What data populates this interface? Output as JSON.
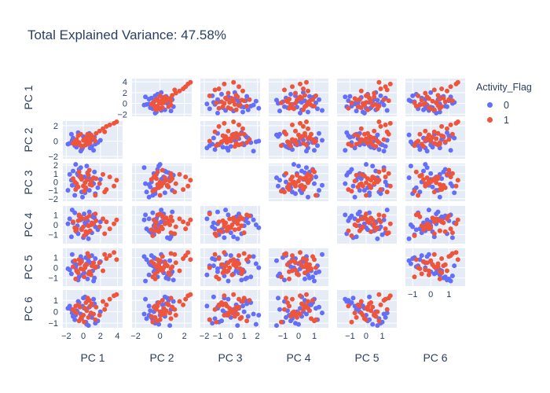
{
  "chart_data": {
    "type": "scatter",
    "title": "Total Explained Variance: 47.58%",
    "dimensions": [
      "PC 1",
      "PC 2",
      "PC 3",
      "PC 4",
      "PC 5",
      "PC 6"
    ],
    "diagonal_visible": false,
    "grid": true,
    "axis_ranges": [
      [
        -2.4,
        4.6
      ],
      [
        -2.3,
        2.6
      ],
      [
        -2.3,
        2.2
      ],
      [
        -1.9,
        1.9
      ],
      [
        -1.8,
        1.9
      ],
      [
        -1.4,
        1.9
      ]
    ],
    "axis_ticks_y": [
      [
        -2,
        0,
        2,
        4
      ],
      [
        -2,
        0,
        2
      ],
      [
        -2,
        -1,
        0,
        1,
        2
      ],
      [
        -1,
        0,
        1
      ],
      [
        -1,
        0,
        1
      ],
      [
        -1,
        0,
        1
      ]
    ],
    "axis_ticks_x": [
      [
        -2,
        0,
        2,
        4
      ],
      [
        -2,
        0,
        2
      ],
      [
        -2,
        -1,
        0,
        1,
        2
      ],
      [
        -1,
        0,
        1
      ],
      [
        -1,
        0,
        1
      ],
      [
        -1,
        0,
        1
      ]
    ],
    "legend": {
      "title": "Activity_Flag",
      "placement": "top-right",
      "items": [
        {
          "label": "0",
          "color": "#636efa"
        },
        {
          "label": "1",
          "color": "#ef553b"
        }
      ]
    },
    "series": [
      {
        "name": "0",
        "color": "#636efa",
        "points": [
          [
            -1.6,
            -0.3,
            0.9,
            0.6,
            -0.2,
            0.5
          ],
          [
            -1.2,
            0.4,
            1.3,
            0.2,
            0.6,
            -0.4
          ],
          [
            -0.8,
            -0.8,
            -0.6,
            -0.7,
            0.3,
            0.1
          ],
          [
            -0.5,
            -0.2,
            1.5,
            0.9,
            -0.9,
            0.8
          ],
          [
            -0.2,
            -1.1,
            -1.2,
            -0.4,
            0.8,
            -0.6
          ],
          [
            0.1,
            0.3,
            0.6,
            1.1,
            -0.5,
            0.3
          ],
          [
            0.3,
            -0.5,
            -0.9,
            -1.0,
            1.0,
            -0.9
          ],
          [
            0.5,
            0.7,
            1.1,
            0.4,
            -1.1,
            1.0
          ],
          [
            0.8,
            -0.9,
            -0.3,
            -0.6,
            0.5,
            -0.3
          ],
          [
            1.1,
            0.2,
            0.4,
            0.8,
            -0.3,
            0.6
          ],
          [
            1.4,
            -0.4,
            -1.4,
            -0.2,
            0.9,
            -1.0
          ],
          [
            -1.4,
            0.9,
            0.2,
            -1.2,
            -0.6,
            0.2
          ],
          [
            -1.0,
            -0.6,
            -1.6,
            1.2,
            0.2,
            -0.7
          ],
          [
            -0.6,
            1.1,
            0.8,
            -0.9,
            -1.2,
            0.9
          ],
          [
            -0.3,
            -1.3,
            1.7,
            0.5,
            1.1,
            -0.2
          ],
          [
            0.0,
            0.6,
            -0.5,
            -1.3,
            -0.8,
            1.2
          ],
          [
            0.4,
            -0.1,
            1.9,
            0.0,
            0.4,
            -1.1
          ],
          [
            0.7,
            1.0,
            -1.0,
            1.3,
            -0.4,
            0.4
          ],
          [
            1.0,
            -0.7,
            0.0,
            -0.8,
            1.2,
            -0.5
          ],
          [
            1.3,
            0.5,
            1.2,
            0.7,
            -1.0,
            0.7
          ],
          [
            1.7,
            -0.2,
            -0.7,
            -0.5,
            0.1,
            -0.8
          ],
          [
            2.0,
            0.1,
            0.3,
            0.3,
            0.6,
            0.0
          ],
          [
            -1.8,
            -0.4,
            -1.0,
            0.1,
            -0.1,
            0.3
          ],
          [
            -0.9,
            0.0,
            2.1,
            -0.3,
            0.0,
            -0.3
          ],
          [
            -0.1,
            -0.9,
            -1.8,
            0.6,
            -0.7,
            0.5
          ],
          [
            0.6,
            0.8,
            0.5,
            -1.4,
            0.7,
            -1.2
          ],
          [
            1.2,
            -1.2,
            -0.2,
            1.0,
            -1.3,
            1.1
          ],
          [
            -1.3,
            0.1,
            -0.4,
            1.5,
            1.3,
            -0.1
          ],
          [
            -0.7,
            -0.5,
            1.0,
            -0.1,
            -0.4,
            0.0
          ],
          [
            0.2,
            0.4,
            -1.3,
            0.2,
            0.2,
            1.3
          ]
        ]
      },
      {
        "name": "1",
        "color": "#ef553b",
        "points": [
          [
            -1.2,
            -0.3,
            0.4,
            0.3,
            0.1,
            0.2
          ],
          [
            -0.8,
            0.2,
            -0.2,
            -0.4,
            -0.3,
            -0.1
          ],
          [
            -0.4,
            -0.5,
            0.6,
            0.5,
            0.4,
            0.4
          ],
          [
            0.0,
            0.1,
            -0.5,
            -0.2,
            -0.2,
            -0.3
          ],
          [
            0.4,
            0.5,
            0.2,
            0.7,
            0.3,
            0.1
          ],
          [
            0.8,
            -0.2,
            -0.3,
            -0.6,
            -0.4,
            0.5
          ],
          [
            1.2,
            0.4,
            0.5,
            0.1,
            0.5,
            -0.2
          ],
          [
            -0.6,
            0.7,
            -0.6,
            0.4,
            -0.5,
            0.6
          ],
          [
            -0.2,
            -0.7,
            0.3,
            -0.5,
            0.6,
            -0.4
          ],
          [
            0.2,
            0.3,
            -0.1,
            0.6,
            0.0,
            0.3
          ],
          [
            0.6,
            -0.4,
            0.8,
            -0.1,
            -0.6,
            -0.5
          ],
          [
            1.0,
            0.6,
            -0.4,
            0.2,
            0.2,
            0.7
          ],
          [
            -1.0,
            0.0,
            0.0,
            -0.3,
            0.7,
            0.0
          ],
          [
            -0.3,
            0.9,
            0.7,
            0.8,
            -0.1,
            -0.6
          ],
          [
            0.3,
            -0.1,
            -0.7,
            -0.7,
            0.3,
            0.8
          ],
          [
            0.9,
            0.8,
            0.1,
            0.0,
            -0.7,
            -0.1
          ],
          [
            1.5,
            1.0,
            0.4,
            0.4,
            0.1,
            0.4
          ],
          [
            1.9,
            1.3,
            -0.2,
            -0.2,
            0.5,
            -0.3
          ],
          [
            2.3,
            1.6,
            0.9,
            0.6,
            -0.3,
            0.9
          ],
          [
            2.7,
            1.9,
            -0.9,
            0.3,
            0.9,
            0.6
          ],
          [
            3.1,
            2.1,
            0.6,
            -0.4,
            1.2,
            1.1
          ],
          [
            3.6,
            2.3,
            -0.5,
            0.1,
            1.5,
            1.4
          ],
          [
            3.9,
            2.5,
            0.2,
            0.5,
            0.8,
            1.5
          ],
          [
            2.5,
            1.2,
            -1.2,
            -0.9,
            1.3,
            0.2
          ],
          [
            -0.5,
            -0.2,
            1.2,
            1.0,
            0.8,
            -0.8
          ],
          [
            0.1,
            -0.6,
            -1.1,
            -1.1,
            -0.9,
            -0.9
          ],
          [
            0.7,
            0.2,
            1.4,
            0.9,
            1.1,
            1.0
          ],
          [
            -0.9,
            -0.4,
            -0.9,
            -0.6,
            -1.1,
            0.5
          ],
          [
            1.4,
            0.0,
            -1.6,
            1.1,
            0.0,
            -0.7
          ],
          [
            0.5,
            0.9,
            1.0,
            -0.8,
            1.4,
            1.2
          ]
        ]
      }
    ]
  }
}
